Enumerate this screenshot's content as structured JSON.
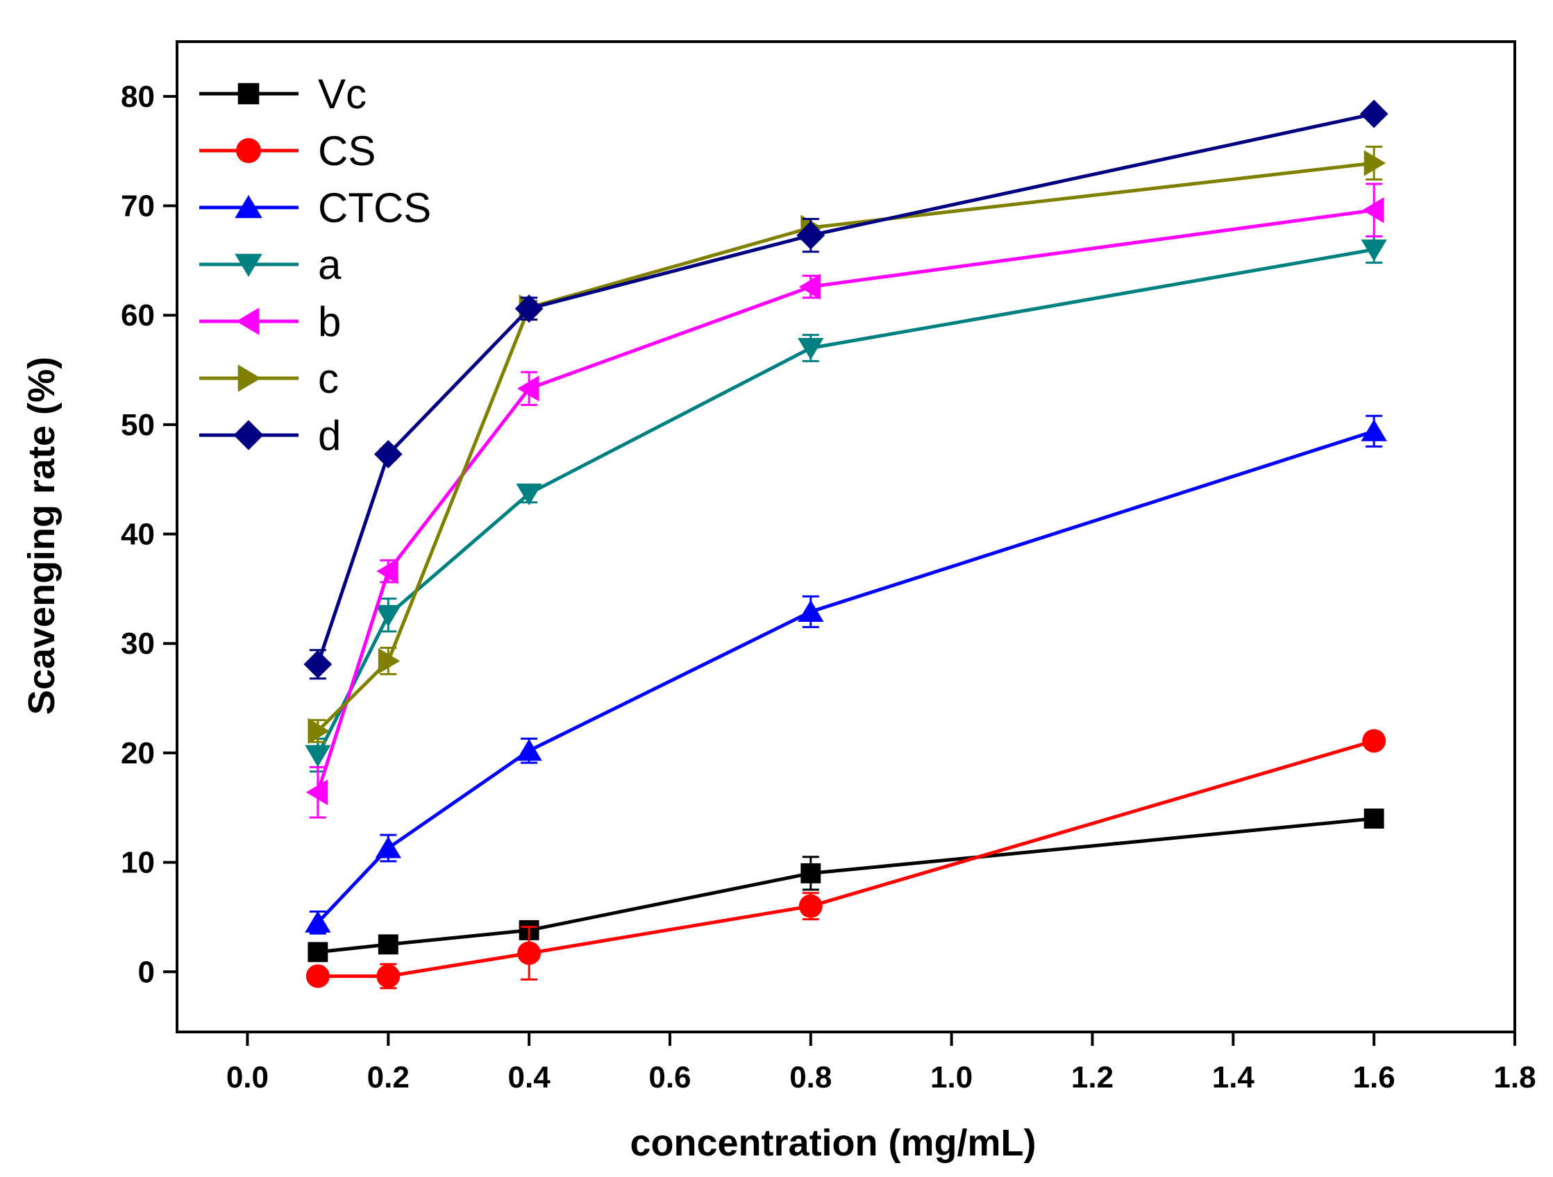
{
  "chart_data": {
    "type": "line",
    "title": "",
    "xlabel": "concentration (mg/mL)",
    "ylabel": "Scavenging rate (%)",
    "xlim": [
      -0.1,
      1.8
    ],
    "ylim": [
      -5.5,
      85
    ],
    "xticks": [
      0.0,
      0.2,
      0.4,
      0.6,
      0.8,
      1.0,
      1.2,
      1.4,
      1.6,
      1.8
    ],
    "xtick_labels": [
      "0.0",
      "0.2",
      "0.4",
      "0.6",
      "0.8",
      "1.0",
      "1.2",
      "1.4",
      "1.6",
      "1.8"
    ],
    "yticks": [
      0,
      10,
      20,
      30,
      40,
      50,
      60,
      70,
      80
    ],
    "ytick_labels": [
      "0",
      "10",
      "20",
      "30",
      "40",
      "50",
      "60",
      "70",
      "80"
    ],
    "grid": false,
    "legend_position": "top-left",
    "x": [
      0.1,
      0.2,
      0.4,
      0.8,
      1.6
    ],
    "series": [
      {
        "name": "Vc",
        "color": "#000000",
        "marker": "square",
        "values": [
          1.8,
          2.5,
          3.8,
          9.0,
          14.0
        ],
        "errors": [
          0.3,
          0.4,
          0.5,
          1.5,
          0.5
        ]
      },
      {
        "name": "CS",
        "color": "#ff0000",
        "marker": "circle",
        "values": [
          -0.4,
          -0.4,
          1.7,
          6.0,
          21.1
        ],
        "errors": [
          0.4,
          1.1,
          2.4,
          1.2,
          0.5
        ]
      },
      {
        "name": "CTCS",
        "color": "#0000ff",
        "marker": "triangle-up",
        "values": [
          4.5,
          11.3,
          20.2,
          32.9,
          49.4
        ],
        "errors": [
          1.0,
          1.2,
          1.1,
          1.4,
          1.4
        ]
      },
      {
        "name": "a",
        "color": "#008080",
        "marker": "triangle-down",
        "values": [
          19.8,
          32.6,
          43.7,
          57.0,
          66.0
        ],
        "errors": [
          1.5,
          1.5,
          0.8,
          1.2,
          1.2
        ]
      },
      {
        "name": "b",
        "color": "#ff00ff",
        "marker": "triangle-left",
        "values": [
          16.4,
          36.6,
          53.3,
          62.6,
          69.6
        ],
        "errors": [
          2.3,
          1.0,
          1.5,
          1.0,
          2.4
        ]
      },
      {
        "name": "c",
        "color": "#808000",
        "marker": "triangle-right",
        "values": [
          22.0,
          28.4,
          60.7,
          68.0,
          73.9
        ],
        "errors": [
          1.0,
          1.2,
          0.6,
          0.8,
          1.5
        ]
      },
      {
        "name": "d",
        "color": "#000080",
        "marker": "diamond",
        "values": [
          28.1,
          47.3,
          60.6,
          67.3,
          78.4
        ],
        "errors": [
          1.3,
          0.5,
          1.0,
          1.5,
          0.3
        ]
      }
    ]
  }
}
